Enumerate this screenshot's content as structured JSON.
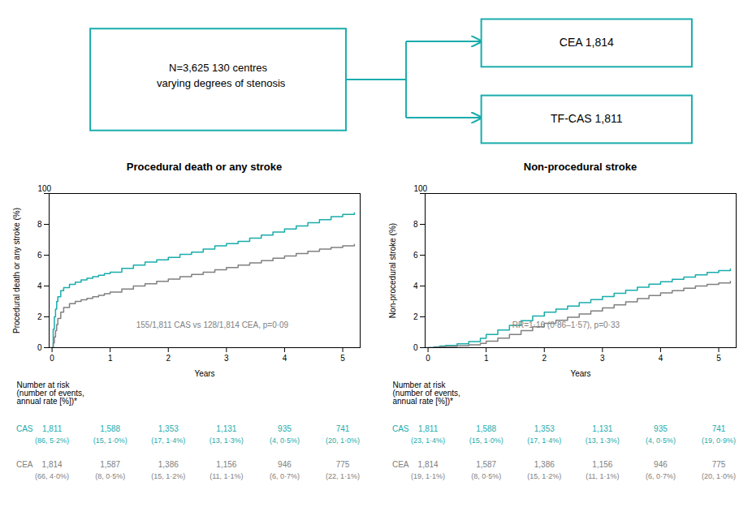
{
  "diagram": {
    "color": "#1AACAC",
    "main_box_text": "N=3,625 130 centres\n  varying degrees of stenosis",
    "cea_box_text": "CEA 1,814",
    "cas_box_text": "TF-CAS 1,811"
  },
  "chart_data": [
    {
      "type": "step",
      "title": "Procedural death or any stroke",
      "xlabel": "Years",
      "ylabel": "Procedural death or any stroke (%)",
      "xlim": [
        -0.05,
        5.3
      ],
      "xticks": [
        0,
        1,
        2,
        3,
        4,
        5
      ],
      "ylim": [
        0,
        10
      ],
      "yticks": [
        0,
        2,
        4,
        6,
        8,
        {
          "value": 10,
          "label": null
        }
      ],
      "annotations": [
        "100",
        "155/1,811 CAS vs 128/1,814 CEA, p=0·09"
      ],
      "series": [
        {
          "name": "CAS",
          "color": "#1AACAC",
          "x": [
            0,
            0.02,
            0.04,
            0.06,
            0.08,
            0.1,
            0.15,
            0.2,
            0.3,
            0.4,
            0.5,
            0.6,
            0.7,
            0.8,
            0.9,
            1.0,
            1.2,
            1.4,
            1.6,
            1.8,
            2.0,
            2.2,
            2.4,
            2.6,
            2.8,
            3.0,
            3.2,
            3.4,
            3.6,
            3.8,
            4.0,
            4.2,
            4.4,
            4.6,
            4.8,
            5.0,
            5.2
          ],
          "values": [
            0,
            1.2,
            2.0,
            2.5,
            3.0,
            3.3,
            3.7,
            3.9,
            4.1,
            4.25,
            4.4,
            4.5,
            4.6,
            4.7,
            4.8,
            4.9,
            5.15,
            5.35,
            5.55,
            5.7,
            5.85,
            6.05,
            6.2,
            6.4,
            6.6,
            6.75,
            6.9,
            7.1,
            7.3,
            7.5,
            7.7,
            7.9,
            8.1,
            8.3,
            8.5,
            8.65,
            8.75
          ]
        },
        {
          "name": "CEA",
          "color": "#808080",
          "x": [
            0,
            0.02,
            0.04,
            0.06,
            0.08,
            0.1,
            0.15,
            0.2,
            0.3,
            0.4,
            0.5,
            0.6,
            0.7,
            0.8,
            0.9,
            1.0,
            1.2,
            1.4,
            1.6,
            1.8,
            2.0,
            2.2,
            2.4,
            2.6,
            2.8,
            3.0,
            3.2,
            3.4,
            3.6,
            3.8,
            4.0,
            4.2,
            4.4,
            4.6,
            4.8,
            5.0,
            5.2
          ],
          "values": [
            0,
            0.3,
            0.7,
            1.1,
            1.5,
            1.9,
            2.3,
            2.6,
            2.85,
            3.0,
            3.1,
            3.2,
            3.3,
            3.4,
            3.5,
            3.6,
            3.8,
            4.0,
            4.15,
            4.3,
            4.45,
            4.6,
            4.75,
            4.9,
            5.05,
            5.2,
            5.35,
            5.5,
            5.65,
            5.8,
            5.95,
            6.1,
            6.25,
            6.4,
            6.5,
            6.6,
            6.7
          ]
        }
      ],
      "table": {
        "header": "Number at risk\n(number of events,\nannual rate [%])*",
        "rows": [
          {
            "name": "CAS",
            "n": [
              "1,811",
              "1,588",
              "1,353",
              "1,131",
              "935",
              "741"
            ],
            "sub": [
              "(86, 5·2%)",
              "(15, 1·0%)",
              "(17, 1·4%)",
              "(13, 1·3%)",
              "(4, 0·5%)",
              "(20, 1·0%)"
            ]
          },
          {
            "name": "CEA",
            "n": [
              "1,814",
              "1,587",
              "1,386",
              "1,156",
              "946",
              "775"
            ],
            "sub": [
              "(66, 4·0%)",
              "(8, 0·5%)",
              "(15, 1·2%)",
              "(11, 1·1%)",
              "(6, 0·7%)",
              "(22, 1·1%)"
            ]
          }
        ]
      }
    },
    {
      "type": "step",
      "title": "Non-procedural stroke",
      "xlabel": "Years",
      "ylabel": "Non-procedural stroke (%)",
      "xlim": [
        -0.05,
        5.3
      ],
      "xticks": [
        0,
        1,
        2,
        3,
        4,
        5
      ],
      "ylim": [
        0,
        10
      ],
      "yticks": [
        0,
        2,
        4,
        6,
        8,
        {
          "value": 10,
          "label": null
        }
      ],
      "annotations": [
        "100",
        "RR=1·16 (0·86–1·57), p=0·33"
      ],
      "series": [
        {
          "name": "CAS",
          "color": "#1AACAC",
          "x": [
            0,
            0.1,
            0.2,
            0.3,
            0.5,
            0.7,
            0.9,
            1.0,
            1.2,
            1.4,
            1.6,
            1.8,
            2.0,
            2.2,
            2.4,
            2.6,
            2.8,
            3.0,
            3.2,
            3.4,
            3.6,
            3.8,
            4.0,
            4.2,
            4.4,
            4.6,
            4.8,
            5.0,
            5.2
          ],
          "values": [
            0,
            0.05,
            0.1,
            0.15,
            0.25,
            0.4,
            0.6,
            0.85,
            1.15,
            1.45,
            1.75,
            2.05,
            2.3,
            2.5,
            2.7,
            2.92,
            3.12,
            3.32,
            3.52,
            3.72,
            3.92,
            4.12,
            4.28,
            4.43,
            4.58,
            4.73,
            4.88,
            5.0,
            5.1
          ]
        },
        {
          "name": "CEA",
          "color": "#808080",
          "x": [
            0,
            0.1,
            0.2,
            0.3,
            0.5,
            0.7,
            0.9,
            1.0,
            1.2,
            1.4,
            1.6,
            1.8,
            2.0,
            2.2,
            2.4,
            2.6,
            2.8,
            3.0,
            3.2,
            3.4,
            3.6,
            3.8,
            4.0,
            4.2,
            4.4,
            4.6,
            4.8,
            5.0,
            5.2
          ],
          "values": [
            0,
            0.02,
            0.05,
            0.08,
            0.12,
            0.18,
            0.28,
            0.42,
            0.62,
            0.85,
            1.1,
            1.35,
            1.58,
            1.78,
            1.98,
            2.18,
            2.38,
            2.58,
            2.78,
            2.98,
            3.18,
            3.38,
            3.55,
            3.7,
            3.85,
            4.0,
            4.1,
            4.2,
            4.3
          ]
        }
      ],
      "table": {
        "header": "Number at risk\n(number of events,\nannual rate [%])*",
        "rows": [
          {
            "name": "CAS",
            "n": [
              "1,811",
              "1,588",
              "1,353",
              "1,131",
              "935",
              "741"
            ],
            "sub": [
              "(23, 1·4%)",
              "(15, 1·0%)",
              "(17, 1·4%)",
              "(13, 1·3%)",
              "(4, 0·5%)",
              "(19, 0·9%)"
            ]
          },
          {
            "name": "CEA",
            "n": [
              "1,814",
              "1,587",
              "1,386",
              "1,156",
              "946",
              "775"
            ],
            "sub": [
              "(19, 1·1%)",
              "(8, 0·5%)",
              "(15, 1·2%)",
              "(11, 1·1%)",
              "(6, 0·7%)",
              "(20, 1·0%)"
            ]
          }
        ]
      }
    }
  ]
}
